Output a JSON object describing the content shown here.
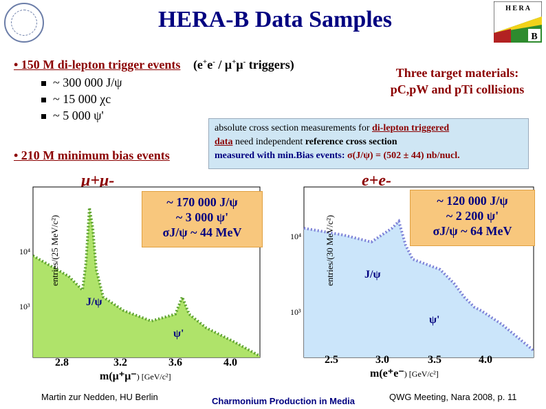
{
  "title": "HERA-B Data Samples",
  "logo": {
    "text1": "H E R A",
    "text2": "B"
  },
  "dilepton": {
    "main": "• 150 M di-lepton trigger events",
    "triggers_pre": "(e",
    "triggers_sup1": "+",
    "triggers_mid1": "e",
    "triggers_sup2": "-",
    "triggers_mid2": " / μ",
    "triggers_sup3": "+",
    "triggers_mid3": "μ",
    "triggers_sup4": "-",
    "triggers_post": " triggers)",
    "items": [
      "~ 300 000 J/ψ",
      "~ 15 000 χc",
      "~ 5 000 ψ'"
    ]
  },
  "minbias": "• 210 M minimum bias events",
  "targets": {
    "line1": "Three target materials:",
    "line2": "pC,pW and pTi collisions"
  },
  "infobox": {
    "l1_a": "absolute cross section measurements for ",
    "l1_b": "di-lepton triggered",
    "l2_a": "data",
    "l2_b": " need independent ",
    "l2_c": "reference cross section",
    "l3_a": "measured with min.Bias events: ",
    "l3_b": "σ(J/ψ) = (502 ± 44) nb/nucl."
  },
  "left_plot": {
    "channel": "μ+μ-",
    "box": [
      "~ 170 000 J/ψ",
      "~ 3 000 ψ'",
      "σJ/ψ ~ 44 MeV"
    ],
    "ylabel": "entries/(25 MeV/c²)",
    "y_ticks": [
      "10⁴",
      "10³"
    ],
    "x_ticks": [
      "2.8",
      "3.2",
      "3.6",
      "4.0"
    ],
    "xlabel_a": "m(μ",
    "xlabel_b": "μ",
    "xlabel_c": ") [GeV/c²]",
    "peak1": "J/ψ",
    "peak2": "ψ'"
  },
  "right_plot": {
    "channel": "e+e-",
    "box": [
      "~ 120 000 J/ψ",
      "~ 2 200 ψ'",
      "σJ/ψ ~ 64 MeV"
    ],
    "ylabel": "entries/(30 MeV/c²)",
    "y_ticks": [
      "10⁴",
      "10³"
    ],
    "x_ticks": [
      "2.5",
      "3.0",
      "3.5",
      "4.0"
    ],
    "xlabel_a": "m(e",
    "xlabel_b": "e",
    "xlabel_c": ") [GeV/c²]",
    "peak1": "J/ψ",
    "peak2": "ψ'"
  },
  "footer": {
    "left": "Martin zur Nedden, HU Berlin",
    "center": "Charmonium Production in Media",
    "right": "QWG Meeting, Nara 2008, p. 11"
  },
  "colors": {
    "title": "#000080",
    "red": "#8b0000",
    "orange": "#f8c77d",
    "green": "#a6e05a",
    "blue": "#c8e4fa"
  }
}
